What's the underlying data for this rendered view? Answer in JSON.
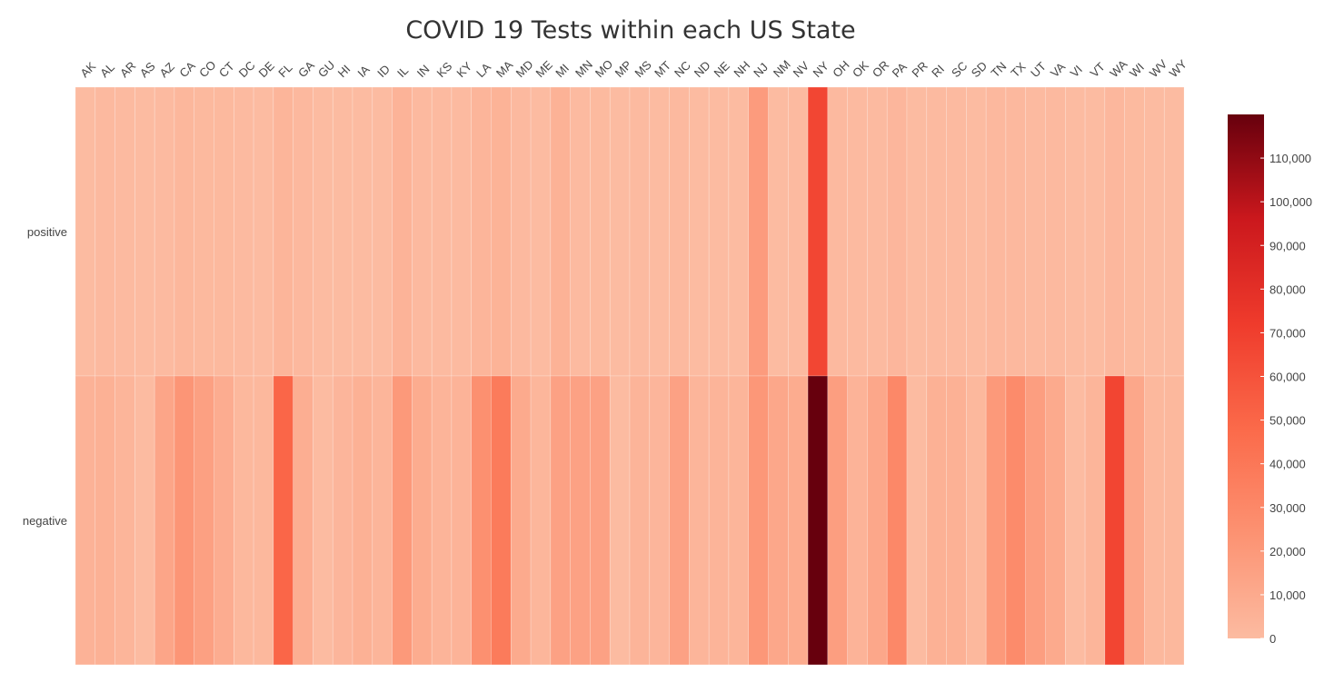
{
  "chart_data": {
    "type": "heatmap",
    "title": "COVID 19 Tests within each US State",
    "x": [
      "AK",
      "AL",
      "AR",
      "AS",
      "AZ",
      "CA",
      "CO",
      "CT",
      "DC",
      "DE",
      "FL",
      "GA",
      "GU",
      "HI",
      "IA",
      "ID",
      "IL",
      "IN",
      "KS",
      "KY",
      "LA",
      "MA",
      "MD",
      "ME",
      "MI",
      "MN",
      "MO",
      "MP",
      "MS",
      "MT",
      "NC",
      "ND",
      "NE",
      "NH",
      "NJ",
      "NM",
      "NV",
      "NY",
      "OH",
      "OK",
      "OR",
      "PA",
      "PR",
      "RI",
      "SC",
      "SD",
      "TN",
      "TX",
      "UT",
      "VA",
      "VI",
      "VT",
      "WA",
      "WI",
      "WV",
      "WY"
    ],
    "y": [
      "positive",
      "negative"
    ],
    "z": [
      [
        100,
        1000,
        300,
        0,
        700,
        2500,
        1400,
        1300,
        300,
        200,
        3700,
        1500,
        30,
        100,
        200,
        200,
        4600,
        1200,
        400,
        500,
        3500,
        4900,
        1000,
        200,
        5500,
        300,
        800,
        0,
        400,
        150,
        900,
        100,
        100,
        150,
        18600,
        100,
        500,
        66500,
        1100,
        400,
        300,
        2800,
        30,
        300,
        500,
        20,
        1500,
        1500,
        500,
        1000,
        0,
        100,
        2200,
        800,
        30,
        50
      ],
      [
        5000,
        6000,
        3600,
        0,
        13000,
        22000,
        16000,
        8500,
        2000,
        1800,
        50000,
        7800,
        0,
        3300,
        6000,
        3500,
        20000,
        9000,
        4000,
        4500,
        25000,
        38000,
        10000,
        3000,
        15000,
        15000,
        15000,
        0,
        4000,
        3300,
        15000,
        3500,
        4000,
        3600,
        21000,
        12000,
        9000,
        120000,
        17000,
        4500,
        12000,
        30000,
        0,
        6000,
        6000,
        2000,
        20000,
        28000,
        17000,
        10000,
        0,
        3500,
        67000,
        12000,
        2000,
        2000
      ]
    ],
    "zmin": 0,
    "zmax": 120000,
    "colorscale": "Reds",
    "colorbar": {
      "tickvals": [
        0,
        10000,
        20000,
        30000,
        40000,
        50000,
        60000,
        70000,
        80000,
        90000,
        100000,
        110000
      ],
      "ticktext": [
        "0",
        "10,000",
        "20,000",
        "30,000",
        "40,000",
        "50,000",
        "60,000",
        "70,000",
        "80,000",
        "90,000",
        "100,000",
        "110,000"
      ],
      "position": "right"
    },
    "grid": false,
    "xaxis_side": "top"
  }
}
